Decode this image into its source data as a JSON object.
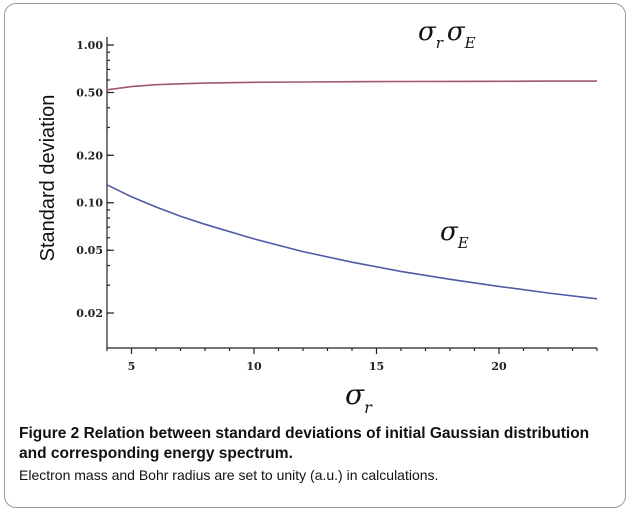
{
  "chart_data": {
    "type": "line",
    "xlabel": "σ_r",
    "ylabel": "Standard deviation",
    "xlim": [
      4,
      24
    ],
    "ylim": [
      0.012,
      1.0
    ],
    "yscale": "log",
    "x_ticks": [
      5,
      10,
      15,
      20
    ],
    "x_tick_labels": [
      "5",
      "10",
      "15",
      "20"
    ],
    "y_ticks": [
      0.02,
      0.05,
      0.1,
      0.2,
      0.5,
      1.0
    ],
    "y_tick_labels": [
      "0.02",
      "0.05",
      "0.10",
      "0.20",
      "0.50",
      "1.00"
    ],
    "grid": false,
    "series": [
      {
        "name": "σ_rσ_E",
        "color": "#a05a6e",
        "x": [
          4,
          5,
          6,
          7,
          8,
          10,
          12,
          14,
          16,
          18,
          20,
          22,
          24
        ],
        "y": [
          0.52,
          0.545,
          0.56,
          0.568,
          0.573,
          0.58,
          0.583,
          0.585,
          0.587,
          0.588,
          0.589,
          0.59,
          0.59
        ]
      },
      {
        "name": "σ_E",
        "color": "#4f5ba8",
        "x": [
          4,
          5,
          6,
          7,
          8,
          10,
          12,
          14,
          16,
          18,
          20,
          22,
          24
        ],
        "y": [
          0.13,
          0.109,
          0.094,
          0.082,
          0.073,
          0.059,
          0.049,
          0.042,
          0.0367,
          0.0327,
          0.0295,
          0.0268,
          0.0246
        ]
      }
    ],
    "series_labels": {
      "product": {
        "main1": "σ",
        "sub1": "r",
        "main2": "σ",
        "sub2": "E"
      },
      "energy": {
        "main": "σ",
        "sub": "E"
      },
      "xaxis": {
        "main": "σ",
        "sub": "r"
      }
    }
  },
  "caption": {
    "title": "Figure 2 Relation between standard deviations of initial Gaussian distribution and corresponding energy spectrum.",
    "note": "Electron mass and Bohr radius are set to unity (a.u.) in calculations."
  }
}
